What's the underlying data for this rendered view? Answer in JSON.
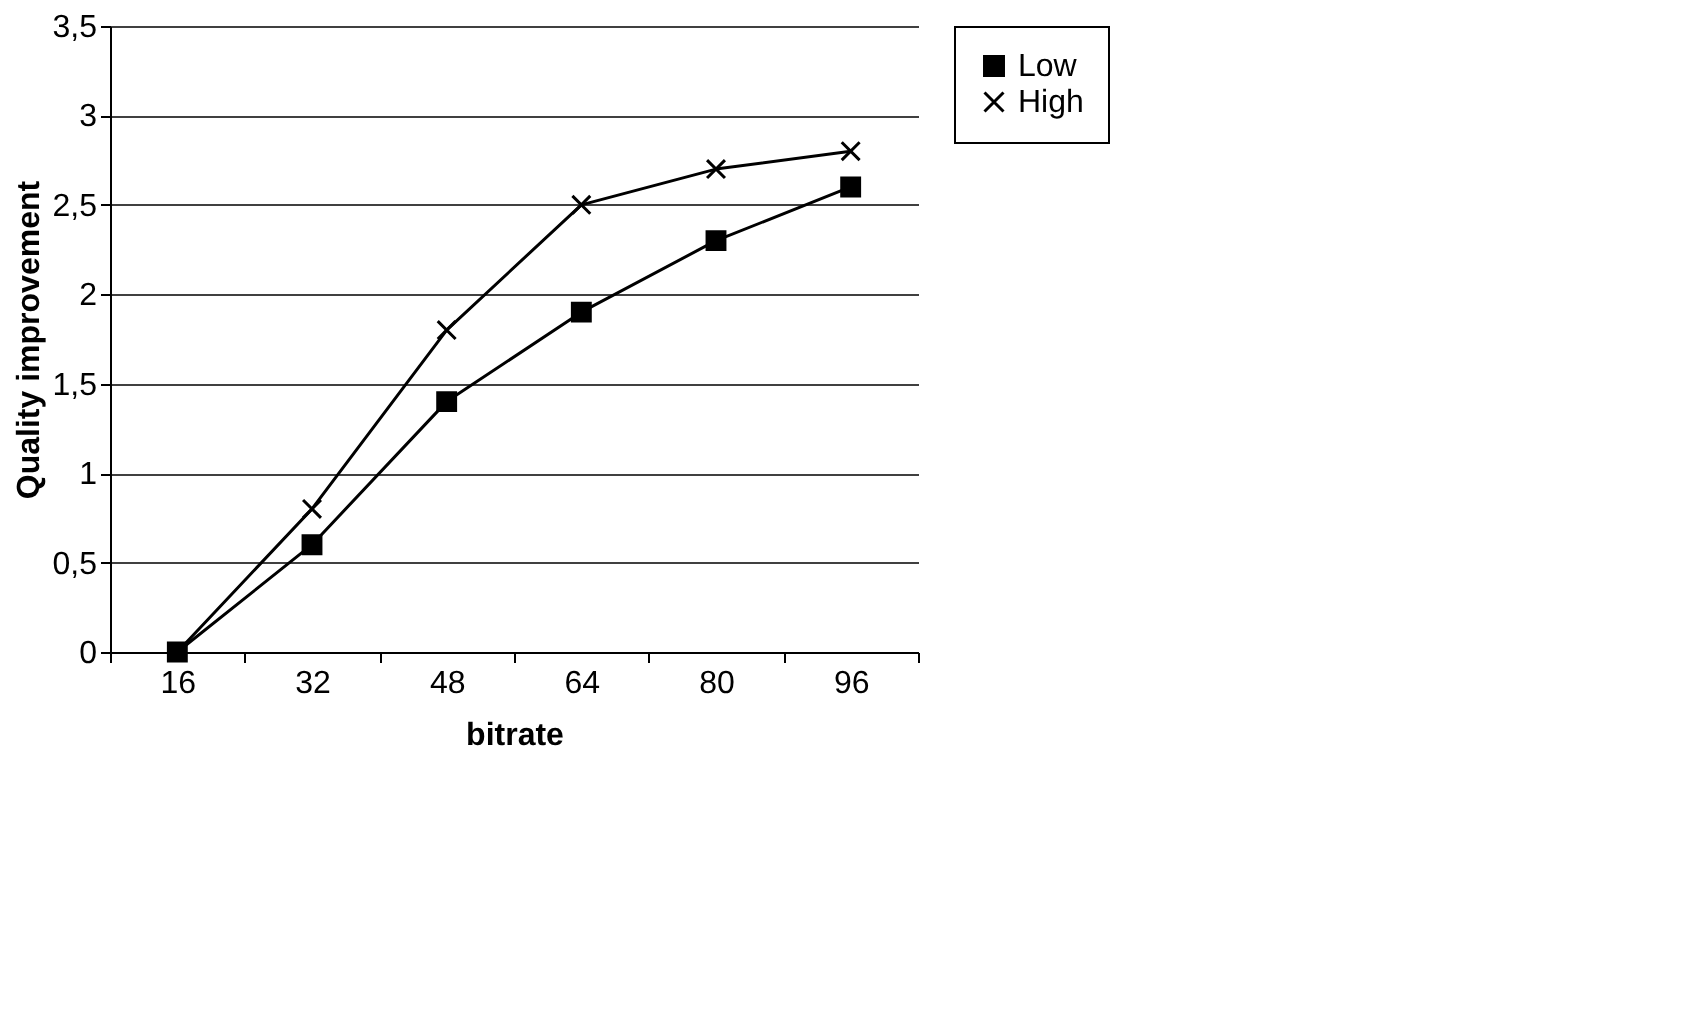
{
  "chart_data": {
    "type": "line",
    "xlabel": "bitrate",
    "ylabel": "Quality improvement",
    "categories": [
      "16",
      "32",
      "48",
      "64",
      "80",
      "96"
    ],
    "series": [
      {
        "name": "Low",
        "color": "#000000",
        "marker": "square",
        "values": [
          0,
          0.6,
          1.4,
          1.9,
          2.3,
          2.6
        ]
      },
      {
        "name": "High",
        "color": "#000000",
        "marker": "cross",
        "values": [
          0,
          0.8,
          1.8,
          2.5,
          2.7,
          2.8
        ]
      }
    ],
    "ylim": [
      0,
      3.5
    ],
    "yticks": [
      0,
      {
        "value": 0.5,
        "label": "0,5"
      },
      1,
      {
        "value": 1.5,
        "label": "1,5"
      },
      2,
      {
        "value": 2.5,
        "label": "2,5"
      },
      3,
      {
        "value": 3.5,
        "label": "3,5"
      }
    ],
    "grid": "y",
    "legend": "right",
    "line_style": "solid"
  }
}
